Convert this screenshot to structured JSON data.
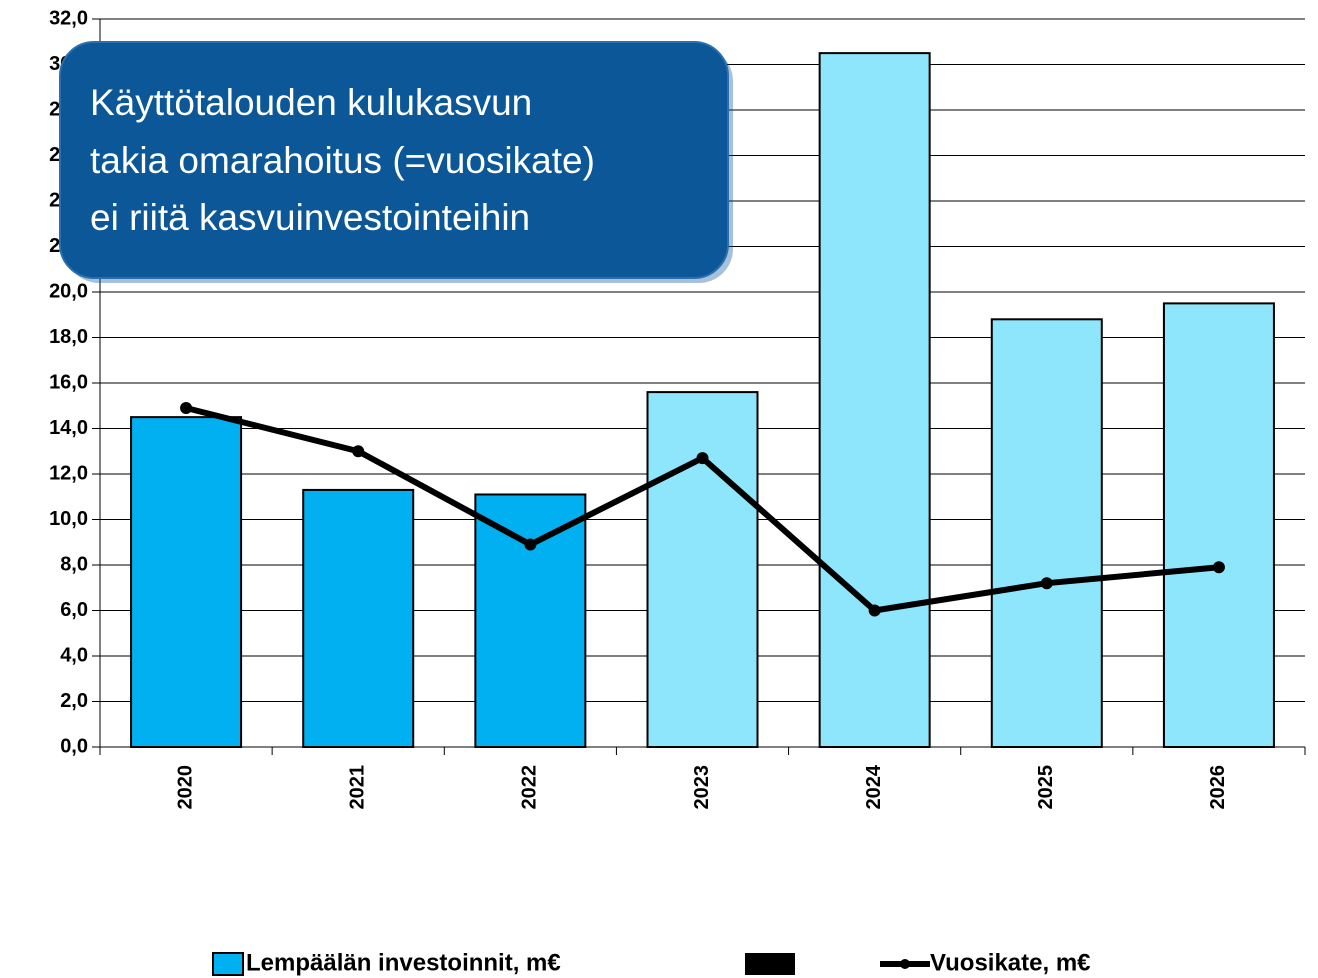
{
  "chart_data": {
    "type": "bar",
    "categories": [
      "2020",
      "2021",
      "2022",
      "2023",
      "2024",
      "2025",
      "2026"
    ],
    "series": [
      {
        "name": "Lempäälän investoinnit, m€",
        "type": "bar",
        "color": "#00b0f0",
        "colors": [
          "#00b0f0",
          "#00b0f0",
          "#00b0f0",
          "#8de6fc",
          "#8de6fc",
          "#8de6fc",
          "#8de6fc"
        ],
        "values": [
          14.5,
          11.3,
          11.1,
          15.6,
          30.5,
          18.8,
          19.5
        ]
      },
      {
        "name": "Vuosikate, m€",
        "type": "line",
        "color": "#000000",
        "values": [
          14.9,
          13.0,
          8.9,
          12.7,
          6.0,
          7.2,
          7.9
        ]
      }
    ],
    "ylim": [
      0,
      32
    ],
    "yticks": [
      {
        "value": 0,
        "label": "0,0"
      },
      {
        "value": 2,
        "label": "2,0"
      },
      {
        "value": 4,
        "label": "4,0"
      },
      {
        "value": 6,
        "label": "6,0"
      },
      {
        "value": 8,
        "label": "8,0"
      },
      {
        "value": 10,
        "label": "10,0"
      },
      {
        "value": 12,
        "label": "12,0"
      },
      {
        "value": 14,
        "label": "14,0"
      },
      {
        "value": 16,
        "label": "16,0"
      },
      {
        "value": 18,
        "label": "18,0"
      },
      {
        "value": 20,
        "label": "20,0"
      },
      {
        "value": 22,
        "label": "22,0"
      },
      {
        "value": 24,
        "label": "24,0"
      },
      {
        "value": 26,
        "label": "26,0"
      },
      {
        "value": 28,
        "label": "28,0"
      },
      {
        "value": 30,
        "label": "30,0"
      },
      {
        "value": 32,
        "label": "32,0"
      }
    ],
    "grid": true,
    "legend": "bottom",
    "annotation": [
      "Käyttötalouden kulukasvun",
      "takia omarahoitus (=vuosikate)",
      "ei riitä kasvuinvestointeihin"
    ]
  }
}
